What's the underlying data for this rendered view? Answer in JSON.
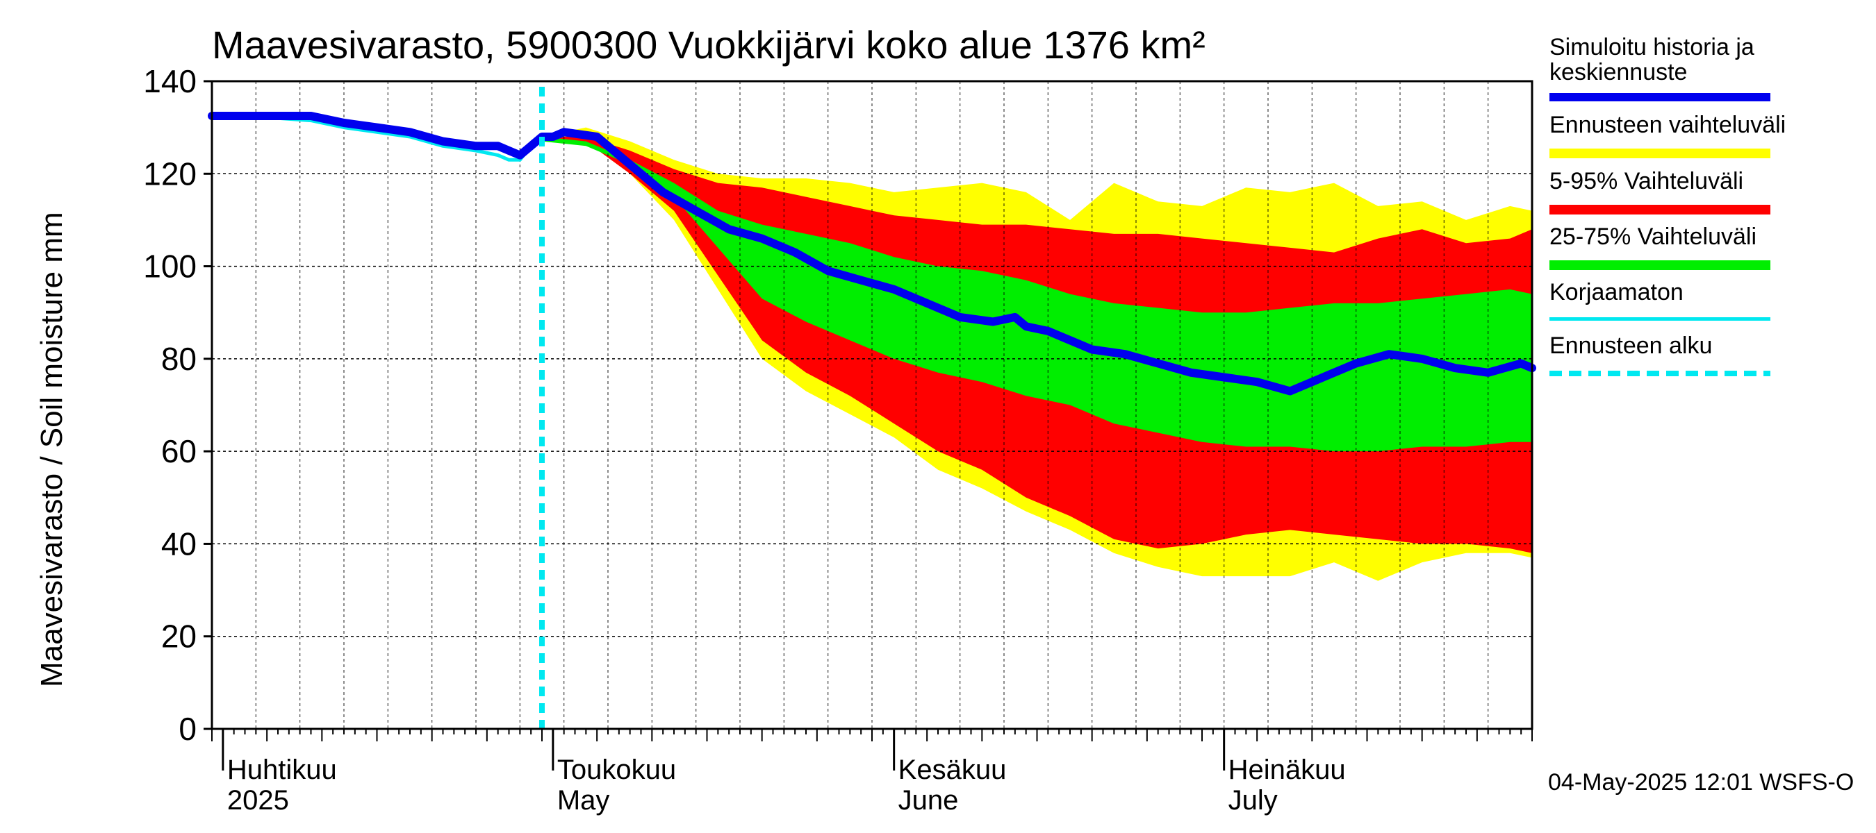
{
  "title": "Maavesivarasto, 5900300 Vuokkijärvi koko alue 1376 km²",
  "ylabel": "Maavesivarasto / Soil moisture   mm",
  "footer": "04-May-2025 12:01 WSFS-O",
  "colors": {
    "history": "#0000ee",
    "uncorrected": "#00e8f0",
    "range_full": "#ffff00",
    "range_5_95": "#ff0000",
    "range_25_75": "#00ee00",
    "forecast_start": "#00e8f0",
    "grid": "#000000"
  },
  "legend": [
    {
      "key": "history",
      "label": "Simuloitu historia ja keskiennuste",
      "style": "line-thick"
    },
    {
      "key": "range_full",
      "label": "Ennusteen vaihteluväli",
      "style": "band"
    },
    {
      "key": "range_5_95",
      "label": "5-95% Vaihteluväli",
      "style": "band"
    },
    {
      "key": "range_25_75",
      "label": "25-75% Vaihteluväli",
      "style": "band"
    },
    {
      "key": "uncorrected",
      "label": "Korjaamaton",
      "style": "line-thin"
    },
    {
      "key": "forecast_start",
      "label": "Ennusteen alku",
      "style": "dashed"
    }
  ],
  "chart_data": {
    "type": "area",
    "title": "Maavesivarasto, 5900300 Vuokkijärvi koko alue 1376 km²",
    "ylabel": "Maavesivarasto / Soil moisture mm",
    "xlabel": "",
    "x_unit": "day of 2025 (1 = Jan 1)",
    "xlim": [
      90,
      210
    ],
    "ylim": [
      0,
      140
    ],
    "yticks": [
      0,
      20,
      40,
      60,
      80,
      100,
      120,
      140
    ],
    "grid": true,
    "month_ticks": [
      {
        "day": 91,
        "fi": "Huhtikuu",
        "en": "2025"
      },
      {
        "day": 121,
        "fi": "Toukokuu",
        "en": "May"
      },
      {
        "day": 152,
        "fi": "Kesäkuu",
        "en": "June"
      },
      {
        "day": 182,
        "fi": "Heinäkuu",
        "en": "July"
      }
    ],
    "forecast_start_day": 120,
    "series": [
      {
        "name": "Simuloitu historia ja keskiennuste",
        "key": "history",
        "x": [
          90,
          93,
          96,
          99,
          102,
          105,
          108,
          111,
          114,
          116,
          117,
          118,
          119,
          120,
          121,
          122,
          125,
          128,
          131,
          134,
          137,
          140,
          143,
          146,
          149,
          152,
          155,
          158,
          161,
          163,
          164,
          166,
          168,
          170,
          173,
          176,
          179,
          182,
          185,
          188,
          191,
          194,
          197,
          200,
          203,
          206,
          209,
          210
        ],
        "y": [
          132.5,
          132.5,
          132.5,
          132.5,
          131,
          130,
          129,
          127,
          126,
          126,
          125,
          124,
          126,
          128,
          128,
          129,
          128,
          122,
          116,
          112,
          108,
          106,
          103,
          99,
          97,
          95,
          92,
          89,
          88,
          89,
          87,
          86,
          84,
          82,
          81,
          79,
          77,
          76,
          75,
          73,
          76,
          79,
          81,
          80,
          78,
          77,
          79,
          78
        ]
      },
      {
        "name": "Korjaamaton",
        "key": "uncorrected",
        "x": [
          90,
          93,
          96,
          99,
          102,
          105,
          108,
          111,
          114,
          116,
          117,
          118,
          119,
          120
        ],
        "y": [
          132,
          132,
          132,
          131.5,
          130,
          129,
          128,
          126,
          125,
          124,
          123,
          123,
          126,
          128
        ]
      },
      {
        "name": "Ennusteen vaihteluväli (max)",
        "key": "range_full_upper",
        "x": [
          120,
          124,
          128,
          132,
          136,
          140,
          144,
          148,
          152,
          156,
          160,
          164,
          168,
          172,
          176,
          180,
          184,
          188,
          192,
          196,
          200,
          204,
          208,
          210
        ],
        "y": [
          128,
          130,
          127,
          123,
          120,
          119,
          119,
          118,
          116,
          117,
          118,
          116,
          110,
          118,
          114,
          113,
          117,
          116,
          118,
          113,
          114,
          110,
          113,
          112
        ]
      },
      {
        "name": "Ennusteen vaihteluväli (min)",
        "key": "range_full_lower",
        "x": [
          120,
          124,
          128,
          132,
          136,
          140,
          144,
          148,
          152,
          156,
          160,
          164,
          168,
          172,
          176,
          180,
          184,
          188,
          192,
          196,
          200,
          204,
          208,
          210
        ],
        "y": [
          127,
          127,
          120,
          110,
          95,
          80,
          73,
          68,
          63,
          56,
          52,
          47,
          43,
          38,
          35,
          33,
          33,
          33,
          36,
          32,
          36,
          38,
          38,
          37
        ]
      },
      {
        "name": "5-95% yläraja",
        "key": "range_5_95_upper",
        "x": [
          120,
          124,
          128,
          132,
          136,
          140,
          144,
          148,
          152,
          156,
          160,
          164,
          168,
          172,
          176,
          180,
          184,
          188,
          192,
          196,
          200,
          204,
          208,
          210
        ],
        "y": [
          128,
          128,
          125,
          121,
          118,
          117,
          115,
          113,
          111,
          110,
          109,
          109,
          108,
          107,
          107,
          106,
          105,
          104,
          103,
          106,
          108,
          105,
          106,
          108
        ]
      },
      {
        "name": "5-95% alaraja",
        "key": "range_5_95_lower",
        "x": [
          120,
          124,
          128,
          132,
          136,
          140,
          144,
          148,
          152,
          156,
          160,
          164,
          168,
          172,
          176,
          180,
          184,
          188,
          192,
          196,
          200,
          204,
          208,
          210
        ],
        "y": [
          127,
          127,
          120,
          112,
          98,
          84,
          77,
          72,
          66,
          60,
          56,
          50,
          46,
          41,
          39,
          40,
          42,
          43,
          42,
          41,
          40,
          40,
          39,
          38
        ]
      },
      {
        "name": "25-75% yläraja",
        "key": "range_25_75_upper",
        "x": [
          120,
          124,
          128,
          132,
          136,
          140,
          144,
          148,
          152,
          156,
          160,
          164,
          168,
          172,
          176,
          180,
          184,
          188,
          192,
          196,
          200,
          204,
          208,
          210
        ],
        "y": [
          128,
          127,
          123,
          118,
          112,
          109,
          107,
          105,
          102,
          100,
          99,
          97,
          94,
          92,
          91,
          90,
          90,
          91,
          92,
          92,
          93,
          94,
          95,
          94
        ]
      },
      {
        "name": "25-75% alaraja",
        "key": "range_25_75_lower",
        "x": [
          120,
          124,
          128,
          132,
          136,
          140,
          144,
          148,
          152,
          156,
          160,
          164,
          168,
          172,
          176,
          180,
          184,
          188,
          192,
          196,
          200,
          204,
          208,
          210
        ],
        "y": [
          127,
          126,
          122,
          115,
          104,
          93,
          88,
          84,
          80,
          77,
          75,
          72,
          70,
          66,
          64,
          62,
          61,
          61,
          60,
          60,
          61,
          61,
          62,
          62
        ]
      }
    ]
  }
}
